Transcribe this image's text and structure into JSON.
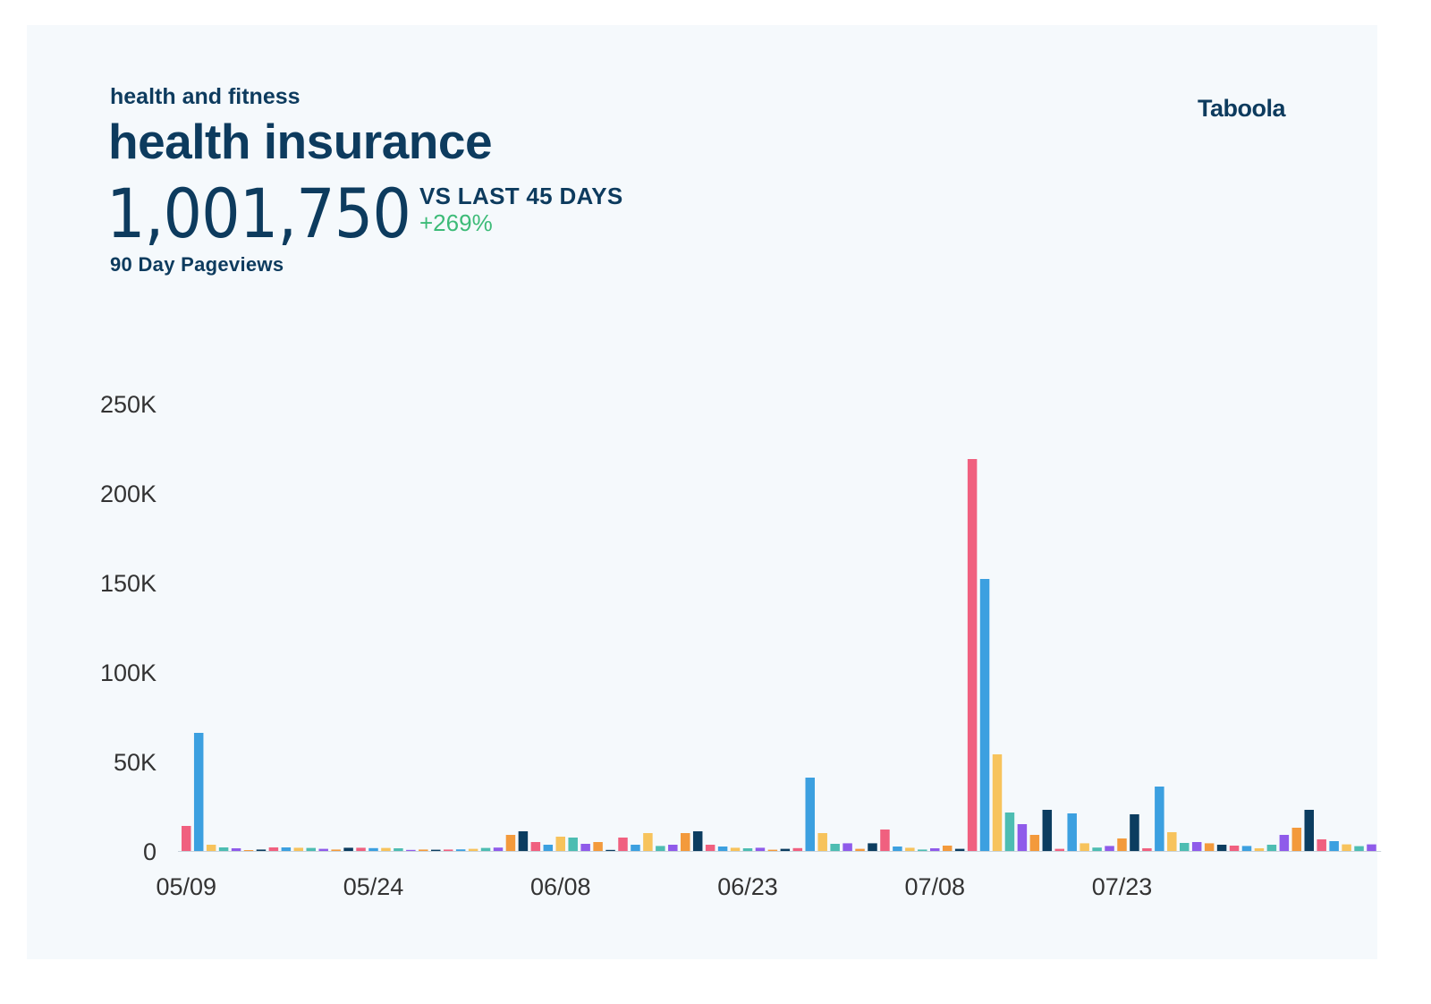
{
  "header": {
    "category": "health and fitness",
    "topic": "health insurance",
    "total": "1,001,750",
    "compare_label": "VS LAST 45 DAYS",
    "change": "+269%",
    "sublabel": "90 Day Pageviews",
    "logo_text": "Taboola"
  },
  "colors": {
    "text": "#0d3b5e",
    "positive": "#3dbb78",
    "background": "#f5f9fc",
    "palette": [
      "#f0607f",
      "#3ca0e0",
      "#f7c35c",
      "#4dbdb2",
      "#8f5bea",
      "#f39a3c",
      "#0c3d60"
    ]
  },
  "chart_data": {
    "type": "bar",
    "start_date": "05/09",
    "ylim": [
      0,
      250000
    ],
    "yticks": [
      0,
      50000,
      100000,
      150000,
      200000,
      250000
    ],
    "ytick_labels": [
      "0",
      "50K",
      "100K",
      "150K",
      "200K",
      "250K"
    ],
    "xtick_labels": [
      "05/09",
      "05/24",
      "06/08",
      "06/23",
      "07/08",
      "07/23"
    ],
    "xtick_indices": [
      0,
      15,
      30,
      45,
      60,
      75
    ],
    "values": [
      14000,
      66000,
      3500,
      2000,
      1500,
      500,
      800,
      2000,
      2000,
      1800,
      1700,
      1200,
      800,
      1800,
      1800,
      1600,
      1700,
      1500,
      600,
      800,
      700,
      800,
      900,
      1200,
      1700,
      1900,
      9000,
      11000,
      5000,
      3500,
      8000,
      7500,
      4000,
      5000,
      600,
      7500,
      3500,
      10000,
      2800,
      3500,
      10000,
      11000,
      3500,
      2500,
      1800,
      1500,
      1800,
      700,
      1200,
      1600,
      41000,
      10000,
      4000,
      4300,
      1200,
      4300,
      12000,
      2500,
      1800,
      800,
      1500,
      3000,
      1200,
      219000,
      152000,
      54000,
      21500,
      15000,
      9000,
      23000,
      1200,
      21000,
      4300,
      1900,
      2800,
      7000,
      20500,
      1500,
      36000,
      10500,
      4500,
      5000,
      4300,
      3500,
      3000,
      2800,
      1500,
      3500,
      9000,
      13000,
      23000,
      6500,
      5500,
      3700,
      2700,
      3700
    ]
  }
}
